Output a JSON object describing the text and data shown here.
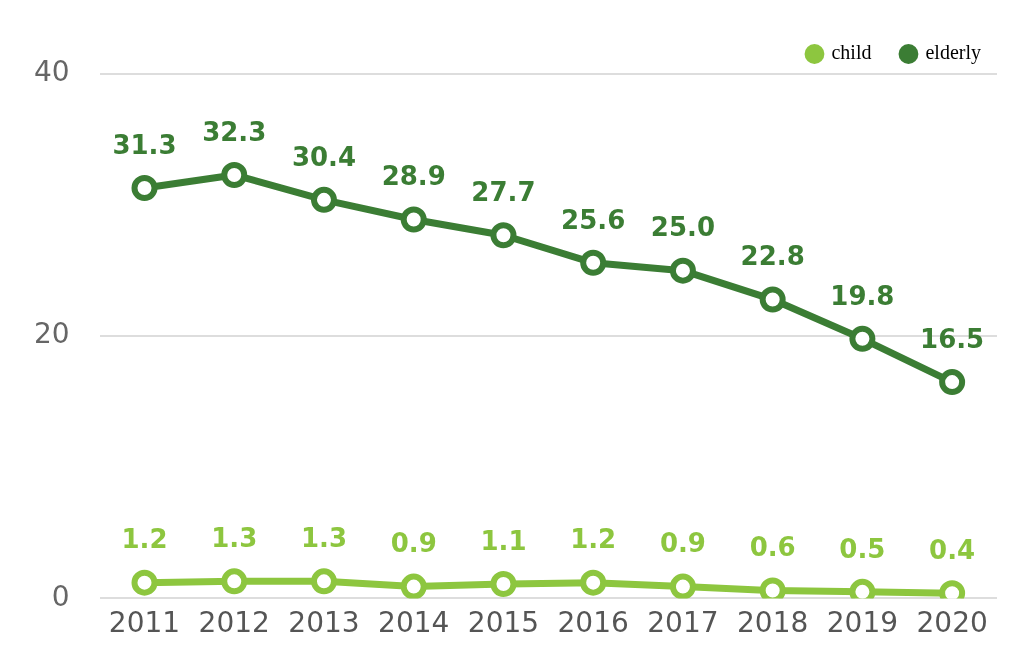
{
  "chart_data": {
    "type": "line",
    "categories": [
      "2011",
      "2012",
      "2013",
      "2014",
      "2015",
      "2016",
      "2017",
      "2018",
      "2019",
      "2020"
    ],
    "series": [
      {
        "name": "child",
        "color": "#8dc63f",
        "values": [
          1.2,
          1.3,
          1.3,
          0.9,
          1.1,
          1.2,
          0.9,
          0.6,
          0.5,
          0.4
        ],
        "value_labels": [
          "1.2",
          "1.3",
          "1.3",
          "0.9",
          "1.1",
          "1.2",
          "0.9",
          "0.6",
          "0.5",
          "0.4"
        ]
      },
      {
        "name": "elderly",
        "color": "#3b7d34",
        "values": [
          31.3,
          32.3,
          30.4,
          28.9,
          27.7,
          25.6,
          25.0,
          22.8,
          19.8,
          16.5
        ],
        "value_labels": [
          "31.3",
          "32.3",
          "30.4",
          "28.9",
          "27.7",
          "25.6",
          "25.0",
          "22.8",
          "19.8",
          "16.5"
        ]
      }
    ],
    "ylim": [
      0,
      40
    ],
    "yticks": [
      0,
      20,
      40
    ],
    "grid": "y",
    "legend": "top right",
    "marker": "circle",
    "line_style": "solid"
  }
}
